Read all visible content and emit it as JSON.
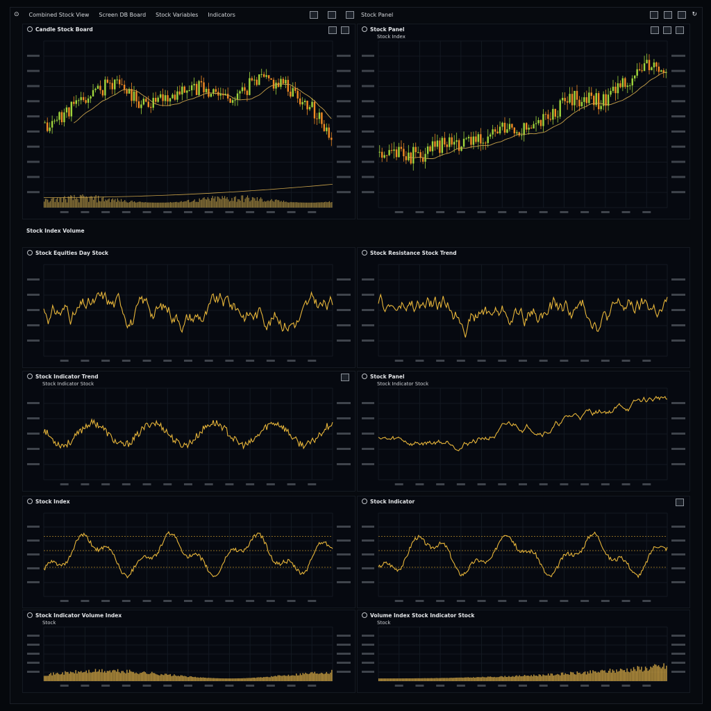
{
  "window": {
    "menu": [
      "Combined Stock View",
      "Screen DB Board",
      "Stock Variables",
      "Indicators"
    ],
    "toolbar_right_title": "Stock Panel"
  },
  "panels": [
    {
      "id": "p1",
      "title": "Candle Stock Board",
      "sub": "",
      "type": "candles",
      "tools": 2,
      "seed": 11,
      "trend": [
        0.35,
        0.5,
        0.62,
        0.72,
        0.55,
        0.58,
        0.68,
        0.64,
        0.6,
        0.74,
        0.7,
        0.55,
        0.3
      ],
      "volume": true,
      "ma": true
    },
    {
      "id": "p2",
      "title": "Stock Panel",
      "sub": "Stock Index",
      "type": "candles",
      "tools": 3,
      "seed": 23,
      "trend": [
        0.3,
        0.35,
        0.32,
        0.42,
        0.4,
        0.48,
        0.52,
        0.5,
        0.62,
        0.7,
        0.66,
        0.8,
        0.88,
        0.86
      ],
      "volume": false,
      "ma": true
    },
    {
      "id": "p3",
      "title": "Stock Equities Day Stock",
      "sub": "",
      "type": "line",
      "tools": 0,
      "seed": 31
    },
    {
      "id": "p4",
      "title": "Stock Resistance Stock Trend",
      "sub": "",
      "type": "line",
      "tools": 0,
      "seed": 47
    },
    {
      "id": "p5",
      "title": "Stock Indicator Trend",
      "sub": "Stock Indicator Stock",
      "type": "wave",
      "tools": 1,
      "seed": 53
    },
    {
      "id": "p6",
      "title": "Stock Panel",
      "sub": "Stock Indicator Stock",
      "type": "trend",
      "tools": 0,
      "seed": 59
    },
    {
      "id": "p7",
      "title": "Stock Index",
      "sub": "",
      "type": "osc",
      "tools": 0,
      "seed": 61
    },
    {
      "id": "p8",
      "title": "Stock Indicator",
      "sub": "",
      "type": "osc",
      "tools": 1,
      "seed": 67
    },
    {
      "id": "p9",
      "title": "Stock Indicator Volume Index",
      "sub": "Stock",
      "type": "vol",
      "tools": 0,
      "seed": 71
    },
    {
      "id": "p10",
      "title": "Volume Index Stock Indicator Stock",
      "sub": "Stock",
      "type": "vol",
      "tools": 0,
      "seed": 83
    }
  ],
  "section_label": "Stock Index Volume",
  "colors": {
    "up": "#9fd53c",
    "down": "#f08a24",
    "line": "#e8b63a",
    "ma": "#c9a24a",
    "grid": "#141922",
    "axis": "#6f757d"
  }
}
